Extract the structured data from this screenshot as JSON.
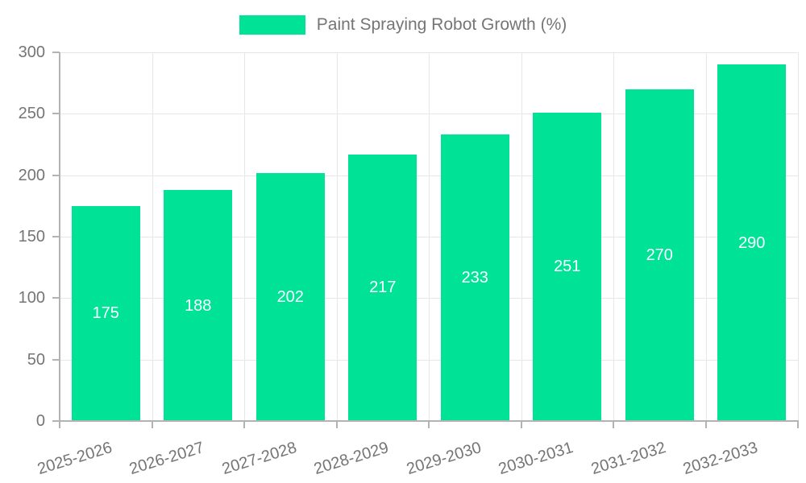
{
  "chart_data": {
    "type": "bar",
    "title": "Paint Spraying Robot Growth (%)",
    "categories": [
      "2025-2026",
      "2026-2027",
      "2027-2028",
      "2028-2029",
      "2029-2030",
      "2030-2031",
      "2031-2032",
      "2032-2033"
    ],
    "values": [
      175,
      188,
      202,
      217,
      233,
      251,
      270,
      290
    ],
    "value_labels": [
      "175",
      "188",
      "202",
      "217",
      "233",
      "251",
      "270",
      "290"
    ],
    "ylim": [
      0,
      300
    ],
    "ytick_labels": [
      "0",
      "50",
      "100",
      "150",
      "200",
      "250",
      "300"
    ],
    "ytick_values": [
      0,
      50,
      100,
      150,
      200,
      250,
      300
    ],
    "grid": "on",
    "legend_position": "top-center",
    "xlabel": "",
    "ylabel": "",
    "colors": {
      "bar": "#00E396",
      "grid": "#e7e7e7",
      "axis": "#b3b3b3",
      "tick_text": "#757575",
      "value_text": "#ffffff"
    }
  },
  "legend": {
    "label": "Paint Spraying Robot Growth (%)"
  }
}
